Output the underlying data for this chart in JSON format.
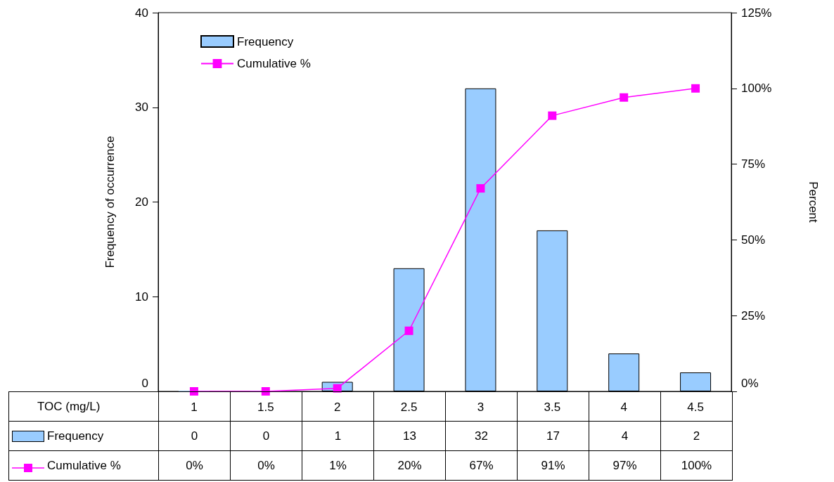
{
  "chart_data": {
    "type": "bar",
    "categories": [
      "1",
      "1.5",
      "2",
      "2.5",
      "3",
      "3.5",
      "4",
      "4.5"
    ],
    "xlabel": "TOC (mg/L)",
    "ylabel": "Frequency of occurrence",
    "y2label": "Percent",
    "series": [
      {
        "name": "Frequency",
        "color": "#99ccff",
        "values": [
          0,
          0,
          1,
          13,
          32,
          17,
          4,
          2
        ],
        "value_labels": [
          "0",
          "0",
          "1",
          "13",
          "32",
          "17",
          "4",
          "2"
        ]
      },
      {
        "name": "Cumulative %",
        "type": "line",
        "axis": "y2",
        "color": "#ff00ff",
        "values": [
          0,
          0,
          1,
          20,
          67,
          91,
          97,
          100
        ],
        "value_labels": [
          "0%",
          "0%",
          "1%",
          "20%",
          "67%",
          "91%",
          "97%",
          "100%"
        ]
      }
    ],
    "ylim": [
      0,
      40
    ],
    "yticks": [
      0,
      10,
      20,
      30,
      40
    ],
    "y2lim": [
      0,
      125
    ],
    "y2ticks": [
      {
        "value": 0,
        "label": "0%"
      },
      {
        "value": 25,
        "label": "25%"
      },
      {
        "value": 50,
        "label": "50%"
      },
      {
        "value": 75,
        "label": "75%"
      },
      {
        "value": 100,
        "label": "100%"
      },
      {
        "value": 125,
        "label": "125%"
      }
    ],
    "legend": "top left",
    "marker": "square",
    "grid": false
  }
}
